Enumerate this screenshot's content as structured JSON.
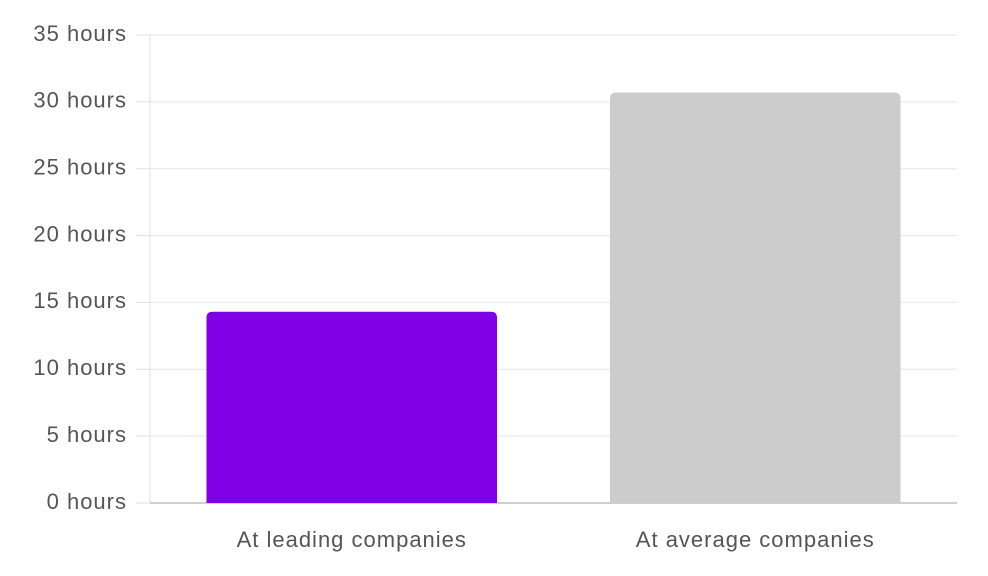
{
  "chart_data": {
    "type": "bar",
    "categories": [
      "At leading companies",
      "At average companies"
    ],
    "values": [
      14.3,
      30.7
    ],
    "colors": [
      "#8000e6",
      "#cccccc"
    ],
    "ylim": [
      0,
      35
    ],
    "yticks": [
      {
        "value": 0,
        "label": "0 hours"
      },
      {
        "value": 5,
        "label": "5 hours"
      },
      {
        "value": 10,
        "label": "10 hours"
      },
      {
        "value": 15,
        "label": "15 hours"
      },
      {
        "value": 20,
        "label": "20 hours"
      },
      {
        "value": 25,
        "label": "25 hours"
      },
      {
        "value": 30,
        "label": "30 hours"
      },
      {
        "value": 35,
        "label": "35 hours"
      }
    ],
    "grid": true
  }
}
